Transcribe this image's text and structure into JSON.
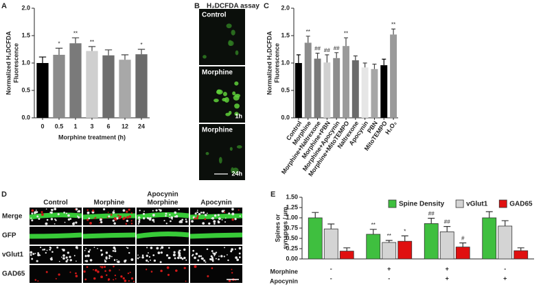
{
  "chart_data": [
    {
      "type": "bar",
      "panel_label": "A",
      "ylabel": [
        "Normalized H₂DCFDA",
        "Fluorescence"
      ],
      "xlabel": "Morphine treatment (h)",
      "categories": [
        "0",
        "0.5",
        "1",
        "3",
        "6",
        "12",
        "24"
      ],
      "values": [
        1.0,
        1.15,
        1.36,
        1.22,
        1.14,
        1.06,
        1.16
      ],
      "errors": [
        0.11,
        0.12,
        0.1,
        0.08,
        0.1,
        0.09,
        0.09
      ],
      "annotations": [
        null,
        "*",
        "**",
        "**",
        null,
        null,
        "*"
      ],
      "colors": [
        "#000000",
        "#8c8c8c",
        "#7a7a7a",
        "#cfcfcf",
        "#6e6e6e",
        "#a8a8a8",
        "#6b6b6b"
      ],
      "ylim": [
        0,
        2
      ],
      "yticks": [
        {
          "value": 0,
          "label": "0.0"
        },
        {
          "value": 0.5,
          "label": "0.5"
        },
        {
          "value": 1,
          "label": "1.0"
        },
        {
          "value": 1.5,
          "label": "1.5"
        },
        {
          "value": 2,
          "label": "2.0"
        }
      ]
    },
    {
      "type": "bar",
      "panel_label": "C",
      "ylabel": [
        "Normalized H₂DCFDA",
        "Fluorescence"
      ],
      "categories": [
        "Control",
        "Morphine",
        "Morphine+Naltrexone",
        "Morphine+PBN",
        "Morphine+Apocynin",
        "Morphine+MitoTEMPO",
        "Naltrexone",
        "Apocynin",
        "PBN",
        "MitoTEMPO",
        "H₂O₂"
      ],
      "values": [
        1.0,
        1.37,
        1.08,
        1.01,
        1.09,
        1.31,
        1.05,
        0.92,
        0.89,
        0.96,
        1.52
      ],
      "errors": [
        0.15,
        0.12,
        0.1,
        0.14,
        0.1,
        0.15,
        0.08,
        0.08,
        0.09,
        0.11,
        0.1
      ],
      "annotations": [
        null,
        "**",
        "##",
        "##",
        "##",
        "**",
        null,
        null,
        null,
        null,
        "**"
      ],
      "colors": [
        "#000000",
        "#8c8c8c",
        "#7a7a7a",
        "#d0d0d0",
        "#8c8c8c",
        "#9a9a9a",
        "#6b6b6b",
        "#e6e6e6",
        "#a6a6a6",
        "#000000",
        "#9a9a9a"
      ],
      "ylim": [
        0,
        2
      ],
      "yticks": [
        {
          "value": 0,
          "label": "0.0"
        },
        {
          "value": 0.5,
          "label": "0.5"
        },
        {
          "value": 1,
          "label": "1.0"
        },
        {
          "value": 1.5,
          "label": "1.5"
        },
        {
          "value": 2,
          "label": "2.0"
        }
      ]
    },
    {
      "type": "grouped-bar",
      "panel_label": "E",
      "ylabel": [
        "Spines or",
        "synapses / µm"
      ],
      "legend": "top-right",
      "series": [
        {
          "name": "Spine Density",
          "color": "#3fbf3f",
          "values": [
            1.0,
            0.6,
            0.86,
            1.0
          ],
          "errors": [
            0.13,
            0.12,
            0.13,
            0.15
          ],
          "annotations": [
            null,
            "**",
            "##",
            null
          ]
        },
        {
          "name": "vGlut1",
          "color": "#d4d4d4",
          "values": [
            0.73,
            0.4,
            0.66,
            0.8
          ],
          "errors": [
            0.12,
            0.05,
            0.13,
            0.13
          ],
          "annotations": [
            null,
            "**",
            "##",
            null
          ]
        },
        {
          "name": "GAD65",
          "color": "#e01010",
          "values": [
            0.19,
            0.43,
            0.29,
            0.2
          ],
          "errors": [
            0.08,
            0.13,
            0.1,
            0.07
          ],
          "annotations": [
            null,
            "*",
            "#",
            null
          ]
        }
      ],
      "conditions": [
        {
          "name": "Morphine",
          "values": [
            "-",
            "+",
            "+",
            "-"
          ]
        },
        {
          "name": "Apocynin",
          "values": [
            "-",
            "-",
            "+",
            "+"
          ]
        }
      ],
      "ylim": [
        0,
        1.5
      ],
      "yticks": [
        {
          "value": 0,
          "label": "0.00"
        },
        {
          "value": 0.25,
          "label": "0.25"
        },
        {
          "value": 0.5,
          "label": "0.50"
        },
        {
          "value": 0.75,
          "label": "0.75"
        },
        {
          "value": 1,
          "label": "1.00"
        },
        {
          "value": 1.25,
          "label": "1.25"
        },
        {
          "value": 1.5,
          "label": "1.50"
        }
      ]
    }
  ],
  "image_panels": [
    {
      "panel_label": "B",
      "title": "H₂DCFDA assay",
      "images": [
        {
          "label": "Control"
        },
        {
          "label": "Morphine",
          "time": "1h"
        },
        {
          "label": "Morphine",
          "time": "24h"
        }
      ]
    },
    {
      "panel_label": "D",
      "columns": [
        "Control",
        "Morphine",
        [
          "Apocynin",
          "Morphine"
        ],
        "Apocynin"
      ],
      "rows": [
        "Merge",
        "GFP",
        "vGlut1",
        "GAD65"
      ]
    }
  ]
}
